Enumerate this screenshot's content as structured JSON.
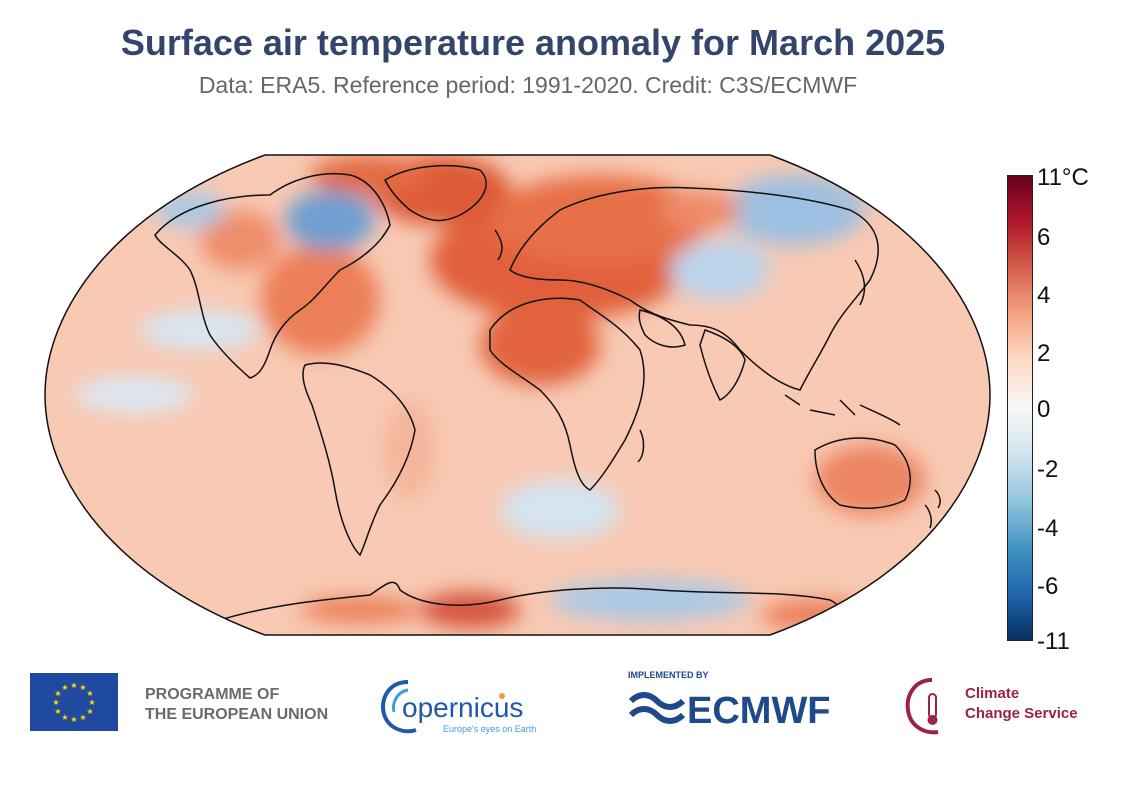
{
  "header": {
    "title": "Surface air temperature anomaly for March 2025",
    "subtitle": "Data: ERA5.  Reference period: 1991-2020.  Credit: C3S/ECMWF"
  },
  "colorbar": {
    "labels": [
      "11°C",
      "6",
      "4",
      "2",
      "0",
      "-2",
      "-4",
      "-6",
      "-11"
    ],
    "colors": [
      "#67001f",
      "#b2182b",
      "#d6604d",
      "#f4a582",
      "#fddbc7",
      "#f7f7f7",
      "#d1e5f0",
      "#92c5de",
      "#4393c3",
      "#2166ac",
      "#053061"
    ]
  },
  "map": {
    "ocean_base_color": "#f9d0bd",
    "land_outline_color": "#111111"
  },
  "footer": {
    "eu_programme": [
      "PROGRAMME OF",
      "THE EUROPEAN UNION"
    ],
    "copernicus_name": "opernicus",
    "copernicus_tagline": "Europe's eyes on Earth",
    "implemented_by": "IMPLEMENTED BY",
    "ecmwf_name": "ECMWF",
    "c3s_name": [
      "Climate",
      "Change Service"
    ]
  }
}
